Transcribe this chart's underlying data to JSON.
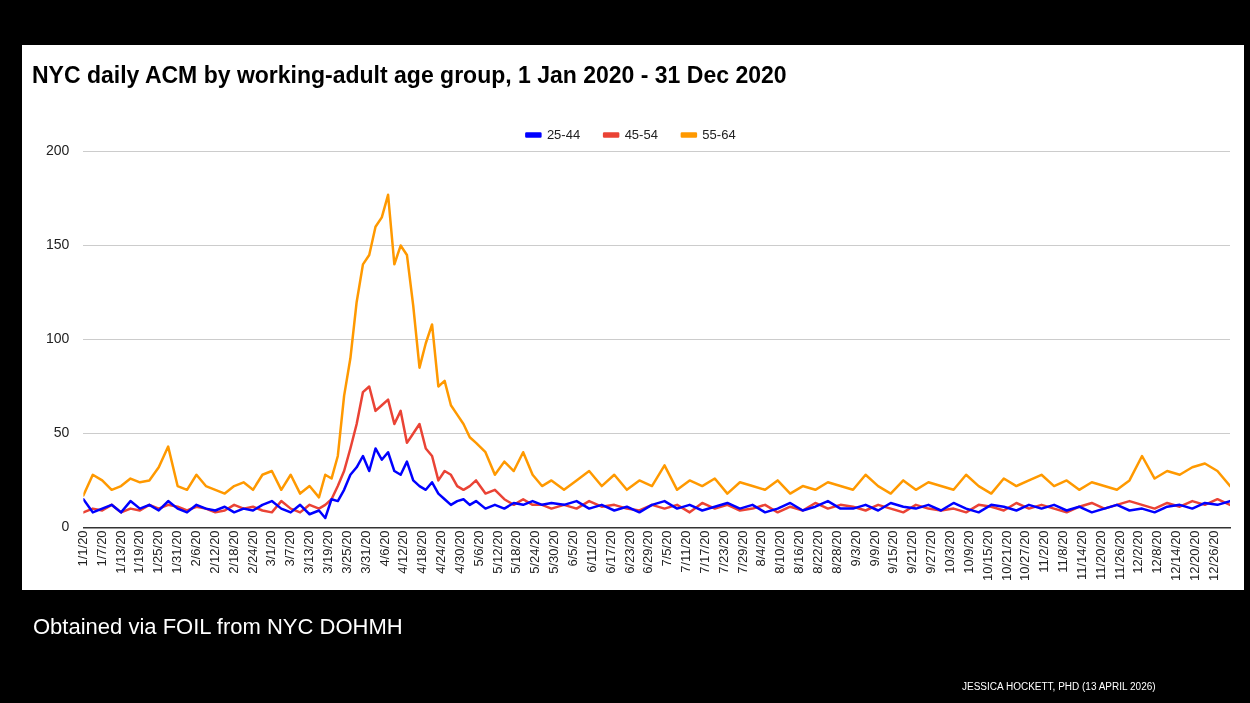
{
  "chart_data": {
    "type": "line",
    "title": "NYC daily ACM by working-adult age group, 1 Jan 2020 - 31 Dec 2020",
    "annotations": [
      "Obtained via FOIL from NYC DOHMH",
      "JESSICA HOCKETT, PHD (13 APRIL 2026)"
    ],
    "x": [
      "2020-01-01",
      "2020-01-04",
      "2020-01-07",
      "2020-01-10",
      "2020-01-13",
      "2020-01-16",
      "2020-01-19",
      "2020-01-22",
      "2020-01-25",
      "2020-01-28",
      "2020-01-31",
      "2020-02-03",
      "2020-02-06",
      "2020-02-09",
      "2020-02-12",
      "2020-02-15",
      "2020-02-18",
      "2020-02-21",
      "2020-02-24",
      "2020-02-27",
      "2020-03-01",
      "2020-03-04",
      "2020-03-07",
      "2020-03-10",
      "2020-03-13",
      "2020-03-16",
      "2020-03-18",
      "2020-03-20",
      "2020-03-22",
      "2020-03-24",
      "2020-03-26",
      "2020-03-28",
      "2020-03-30",
      "2020-04-01",
      "2020-04-03",
      "2020-04-05",
      "2020-04-07",
      "2020-04-09",
      "2020-04-11",
      "2020-04-13",
      "2020-04-15",
      "2020-04-17",
      "2020-04-19",
      "2020-04-21",
      "2020-04-23",
      "2020-04-25",
      "2020-04-27",
      "2020-04-29",
      "2020-05-01",
      "2020-05-03",
      "2020-05-05",
      "2020-05-08",
      "2020-05-11",
      "2020-05-14",
      "2020-05-17",
      "2020-05-20",
      "2020-05-23",
      "2020-05-26",
      "2020-05-29",
      "2020-06-02",
      "2020-06-06",
      "2020-06-10",
      "2020-06-14",
      "2020-06-18",
      "2020-06-22",
      "2020-06-26",
      "2020-06-30",
      "2020-07-04",
      "2020-07-08",
      "2020-07-12",
      "2020-07-16",
      "2020-07-20",
      "2020-07-24",
      "2020-07-28",
      "2020-08-01",
      "2020-08-05",
      "2020-08-09",
      "2020-08-13",
      "2020-08-17",
      "2020-08-21",
      "2020-08-25",
      "2020-08-29",
      "2020-09-02",
      "2020-09-06",
      "2020-09-10",
      "2020-09-14",
      "2020-09-18",
      "2020-09-22",
      "2020-09-26",
      "2020-09-30",
      "2020-10-04",
      "2020-10-08",
      "2020-10-12",
      "2020-10-16",
      "2020-10-20",
      "2020-10-24",
      "2020-10-28",
      "2020-11-01",
      "2020-11-05",
      "2020-11-09",
      "2020-11-13",
      "2020-11-17",
      "2020-11-21",
      "2020-11-25",
      "2020-11-29",
      "2020-12-03",
      "2020-12-07",
      "2020-12-11",
      "2020-12-15",
      "2020-12-19",
      "2020-12-23",
      "2020-12-27",
      "2020-12-31"
    ],
    "series": [
      {
        "name": "25-44",
        "color": "#0000ff",
        "values": [
          15,
          8,
          10,
          12,
          8,
          14,
          10,
          12,
          9,
          14,
          10,
          8,
          12,
          10,
          9,
          11,
          8,
          10,
          9,
          12,
          14,
          10,
          8,
          12,
          7,
          9,
          5,
          15,
          14,
          20,
          28,
          32,
          38,
          30,
          42,
          36,
          40,
          30,
          28,
          35,
          25,
          22,
          20,
          24,
          18,
          15,
          12,
          14,
          15,
          12,
          14,
          10,
          12,
          10,
          13,
          12,
          14,
          12,
          13,
          12,
          14,
          10,
          12,
          9,
          11,
          8,
          12,
          14,
          10,
          12,
          9,
          11,
          13,
          10,
          12,
          8,
          10,
          13,
          9,
          11,
          14,
          10,
          10,
          12,
          9,
          13,
          11,
          10,
          12,
          9,
          13,
          10,
          8,
          12,
          11,
          9,
          12,
          10,
          12,
          9,
          11,
          8,
          10,
          12,
          9,
          10,
          8,
          11,
          12,
          10,
          13,
          12,
          14
        ]
      },
      {
        "name": "45-54",
        "color": "#ea4335",
        "values": [
          8,
          10,
          9,
          12,
          8,
          10,
          9,
          12,
          10,
          12,
          11,
          9,
          11,
          10,
          8,
          9,
          12,
          10,
          11,
          9,
          8,
          14,
          10,
          8,
          12,
          10,
          12,
          15,
          22,
          30,
          42,
          55,
          72,
          75,
          62,
          65,
          68,
          55,
          62,
          45,
          50,
          55,
          42,
          38,
          25,
          30,
          28,
          22,
          20,
          22,
          25,
          18,
          20,
          15,
          12,
          15,
          12,
          12,
          10,
          12,
          10,
          14,
          11,
          12,
          10,
          9,
          12,
          10,
          12,
          8,
          13,
          10,
          12,
          9,
          10,
          12,
          8,
          11,
          9,
          13,
          10,
          12,
          11,
          9,
          12,
          10,
          8,
          12,
          10,
          9,
          10,
          8,
          12,
          11,
          9,
          13,
          10,
          12,
          10,
          8,
          11,
          13,
          10,
          12,
          14,
          12,
          10,
          13,
          11,
          14,
          12,
          15,
          12
        ]
      },
      {
        "name": "55-64",
        "color": "#ff9900",
        "values": [
          17,
          28,
          25,
          20,
          22,
          26,
          24,
          25,
          32,
          43,
          22,
          20,
          28,
          22,
          20,
          18,
          22,
          24,
          20,
          28,
          30,
          20,
          28,
          18,
          22,
          16,
          28,
          26,
          38,
          70,
          90,
          120,
          140,
          145,
          160,
          165,
          177,
          140,
          150,
          145,
          118,
          85,
          98,
          108,
          75,
          78,
          65,
          60,
          55,
          48,
          45,
          40,
          28,
          35,
          30,
          40,
          28,
          22,
          25,
          20,
          25,
          30,
          22,
          28,
          20,
          25,
          22,
          33,
          20,
          25,
          22,
          26,
          18,
          24,
          22,
          20,
          25,
          18,
          22,
          20,
          24,
          22,
          20,
          28,
          22,
          18,
          25,
          20,
          24,
          22,
          20,
          28,
          22,
          18,
          26,
          22,
          25,
          28,
          22,
          25,
          20,
          24,
          22,
          20,
          25,
          38,
          26,
          30,
          28,
          32,
          34,
          30,
          22
        ]
      }
    ],
    "xlim": [
      "2020-01-01",
      "2020-12-31"
    ],
    "xticks": [
      {
        "value": "2020-01-01",
        "label": "1/1/20"
      },
      {
        "value": "2020-01-07",
        "label": "1/7/20"
      },
      {
        "value": "2020-01-13",
        "label": "1/13/20"
      },
      {
        "value": "2020-01-19",
        "label": "1/19/20"
      },
      {
        "value": "2020-01-25",
        "label": "1/25/20"
      },
      {
        "value": "2020-01-31",
        "label": "1/31/20"
      },
      {
        "value": "2020-02-06",
        "label": "2/6/20"
      },
      {
        "value": "2020-02-12",
        "label": "2/12/20"
      },
      {
        "value": "2020-02-18",
        "label": "2/18/20"
      },
      {
        "value": "2020-02-24",
        "label": "2/24/20"
      },
      {
        "value": "2020-03-01",
        "label": "3/1/20"
      },
      {
        "value": "2020-03-07",
        "label": "3/7/20"
      },
      {
        "value": "2020-03-13",
        "label": "3/13/20"
      },
      {
        "value": "2020-03-19",
        "label": "3/19/20"
      },
      {
        "value": "2020-03-25",
        "label": "3/25/20"
      },
      {
        "value": "2020-03-31",
        "label": "3/31/20"
      },
      {
        "value": "2020-04-06",
        "label": "4/6/20"
      },
      {
        "value": "2020-04-12",
        "label": "4/12/20"
      },
      {
        "value": "2020-04-18",
        "label": "4/18/20"
      },
      {
        "value": "2020-04-24",
        "label": "4/24/20"
      },
      {
        "value": "2020-04-30",
        "label": "4/30/20"
      },
      {
        "value": "2020-05-06",
        "label": "5/6/20"
      },
      {
        "value": "2020-05-12",
        "label": "5/12/20"
      },
      {
        "value": "2020-05-18",
        "label": "5/18/20"
      },
      {
        "value": "2020-05-24",
        "label": "5/24/20"
      },
      {
        "value": "2020-05-30",
        "label": "5/30/20"
      },
      {
        "value": "2020-06-05",
        "label": "6/5/20"
      },
      {
        "value": "2020-06-11",
        "label": "6/11/20"
      },
      {
        "value": "2020-06-17",
        "label": "6/17/20"
      },
      {
        "value": "2020-06-23",
        "label": "6/23/20"
      },
      {
        "value": "2020-06-29",
        "label": "6/29/20"
      },
      {
        "value": "2020-07-05",
        "label": "7/5/20"
      },
      {
        "value": "2020-07-11",
        "label": "7/11/20"
      },
      {
        "value": "2020-07-17",
        "label": "7/17/20"
      },
      {
        "value": "2020-07-23",
        "label": "7/23/20"
      },
      {
        "value": "2020-07-29",
        "label": "7/29/20"
      },
      {
        "value": "2020-08-04",
        "label": "8/4/20"
      },
      {
        "value": "2020-08-10",
        "label": "8/10/20"
      },
      {
        "value": "2020-08-16",
        "label": "8/16/20"
      },
      {
        "value": "2020-08-22",
        "label": "8/22/20"
      },
      {
        "value": "2020-08-28",
        "label": "8/28/20"
      },
      {
        "value": "2020-09-03",
        "label": "9/3/20"
      },
      {
        "value": "2020-09-09",
        "label": "9/9/20"
      },
      {
        "value": "2020-09-15",
        "label": "9/15/20"
      },
      {
        "value": "2020-09-21",
        "label": "9/21/20"
      },
      {
        "value": "2020-09-27",
        "label": "9/27/20"
      },
      {
        "value": "2020-10-03",
        "label": "10/3/20"
      },
      {
        "value": "2020-10-09",
        "label": "10/9/20"
      },
      {
        "value": "2020-10-15",
        "label": "10/15/20"
      },
      {
        "value": "2020-10-21",
        "label": "10/21/20"
      },
      {
        "value": "2020-10-27",
        "label": "10/27/20"
      },
      {
        "value": "2020-11-02",
        "label": "11/2/20"
      },
      {
        "value": "2020-11-08",
        "label": "11/8/20"
      },
      {
        "value": "2020-11-14",
        "label": "11/14/20"
      },
      {
        "value": "2020-11-20",
        "label": "11/20/20"
      },
      {
        "value": "2020-11-26",
        "label": "11/26/20"
      },
      {
        "value": "2020-12-02",
        "label": "12/2/20"
      },
      {
        "value": "2020-12-08",
        "label": "12/8/20"
      },
      {
        "value": "2020-12-14",
        "label": "12/14/20"
      },
      {
        "value": "2020-12-20",
        "label": "12/20/20"
      },
      {
        "value": "2020-12-26",
        "label": "12/26/20"
      }
    ],
    "ylim": [
      0,
      200
    ],
    "yticks": [
      0,
      50,
      100,
      150,
      200
    ],
    "grid": "y",
    "legend": "top",
    "marker": "none",
    "line_style": "solid"
  }
}
